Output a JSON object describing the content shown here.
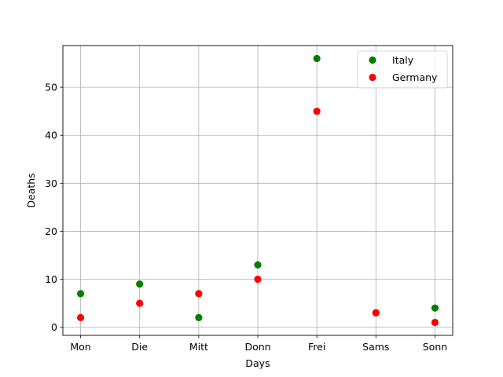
{
  "chart_data": {
    "type": "scatter",
    "categories": [
      "Mon",
      "Die",
      "Mitt",
      "Donn",
      "Frei",
      "Sams",
      "Sonn"
    ],
    "series": [
      {
        "name": "Italy",
        "color": "#008000",
        "values": [
          7,
          9,
          2,
          13,
          56,
          3,
          4
        ]
      },
      {
        "name": "Germany",
        "color": "#ff0000",
        "values": [
          2,
          5,
          7,
          10,
          45,
          3,
          1
        ]
      }
    ],
    "xlabel": "Days",
    "ylabel": "Deaths",
    "ylim": [
      -1.7,
      58.7
    ],
    "yticks": [
      0,
      10,
      20,
      30,
      40,
      50
    ],
    "grid": true,
    "legend": "top-right"
  }
}
